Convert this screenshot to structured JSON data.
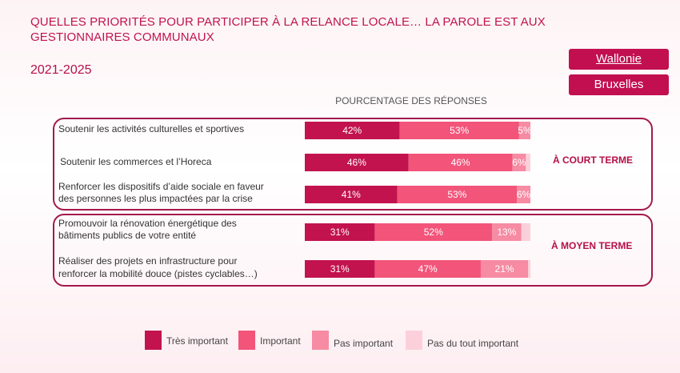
{
  "header": {
    "title": "QUELLES PRIORITÉS POUR PARTICIPER À LA RELANCE LOCALE… LA PAROLE EST AUX GESTIONNAIRES COMMUNAUX",
    "period": "2021-2025"
  },
  "buttons": {
    "wallonie": "Wallonie",
    "bruxelles": "Bruxelles"
  },
  "groups": {
    "court": "À COURT TERME",
    "moyen": "À MOYEN TERME"
  },
  "colors": {
    "tres_important": "#c2134f",
    "important": "#f2547a",
    "pas_important": "#f68ba3",
    "pas_du_tout": "#fbd0da",
    "accent": "#c20f4f"
  },
  "chart_data": {
    "type": "bar",
    "orientation": "horizontal",
    "stacked": true,
    "xlabel": "POURCENTAGE DES RÉPONSES",
    "xlim": [
      0,
      100
    ],
    "categories": [
      [
        "Soutenir les activités culturelles et sportives"
      ],
      [
        "Soutenir les commerces et l’Horeca"
      ],
      [
        "Renforcer les dispositifs d’aide sociale en faveur",
        "des personnes les plus impactées par la crise"
      ],
      [
        "Promouvoir la rénovation énergétique des",
        "bâtiments publics de votre entité"
      ],
      [
        "Réaliser des projets en infrastructure pour",
        "renforcer la mobilité douce (pistes cyclables…)"
      ]
    ],
    "series": [
      {
        "name": "Très important",
        "color": "#c2134f",
        "values": [
          42,
          46,
          41,
          31,
          31
        ]
      },
      {
        "name": "Important",
        "color": "#f2547a",
        "values": [
          53,
          46,
          53,
          52,
          47
        ]
      },
      {
        "name": "Pas important",
        "color": "#f68ba3",
        "values": [
          5,
          6,
          6,
          13,
          21
        ]
      },
      {
        "name": "Pas du tout important",
        "color": "#fbd0da",
        "values": [
          0,
          2,
          0,
          4,
          1
        ]
      }
    ],
    "labels": [
      [
        "42%",
        "53%",
        "5%",
        ""
      ],
      [
        "46%",
        "46%",
        "6%",
        ""
      ],
      [
        "41%",
        "53%",
        "6%",
        ""
      ],
      [
        "31%",
        "52%",
        "13%",
        ""
      ],
      [
        "31%",
        "47%",
        "21%",
        ""
      ]
    ],
    "legend": [
      "Très important",
      "Important",
      "Pas important",
      "Pas du tout important"
    ],
    "legend_position": "bottom"
  }
}
